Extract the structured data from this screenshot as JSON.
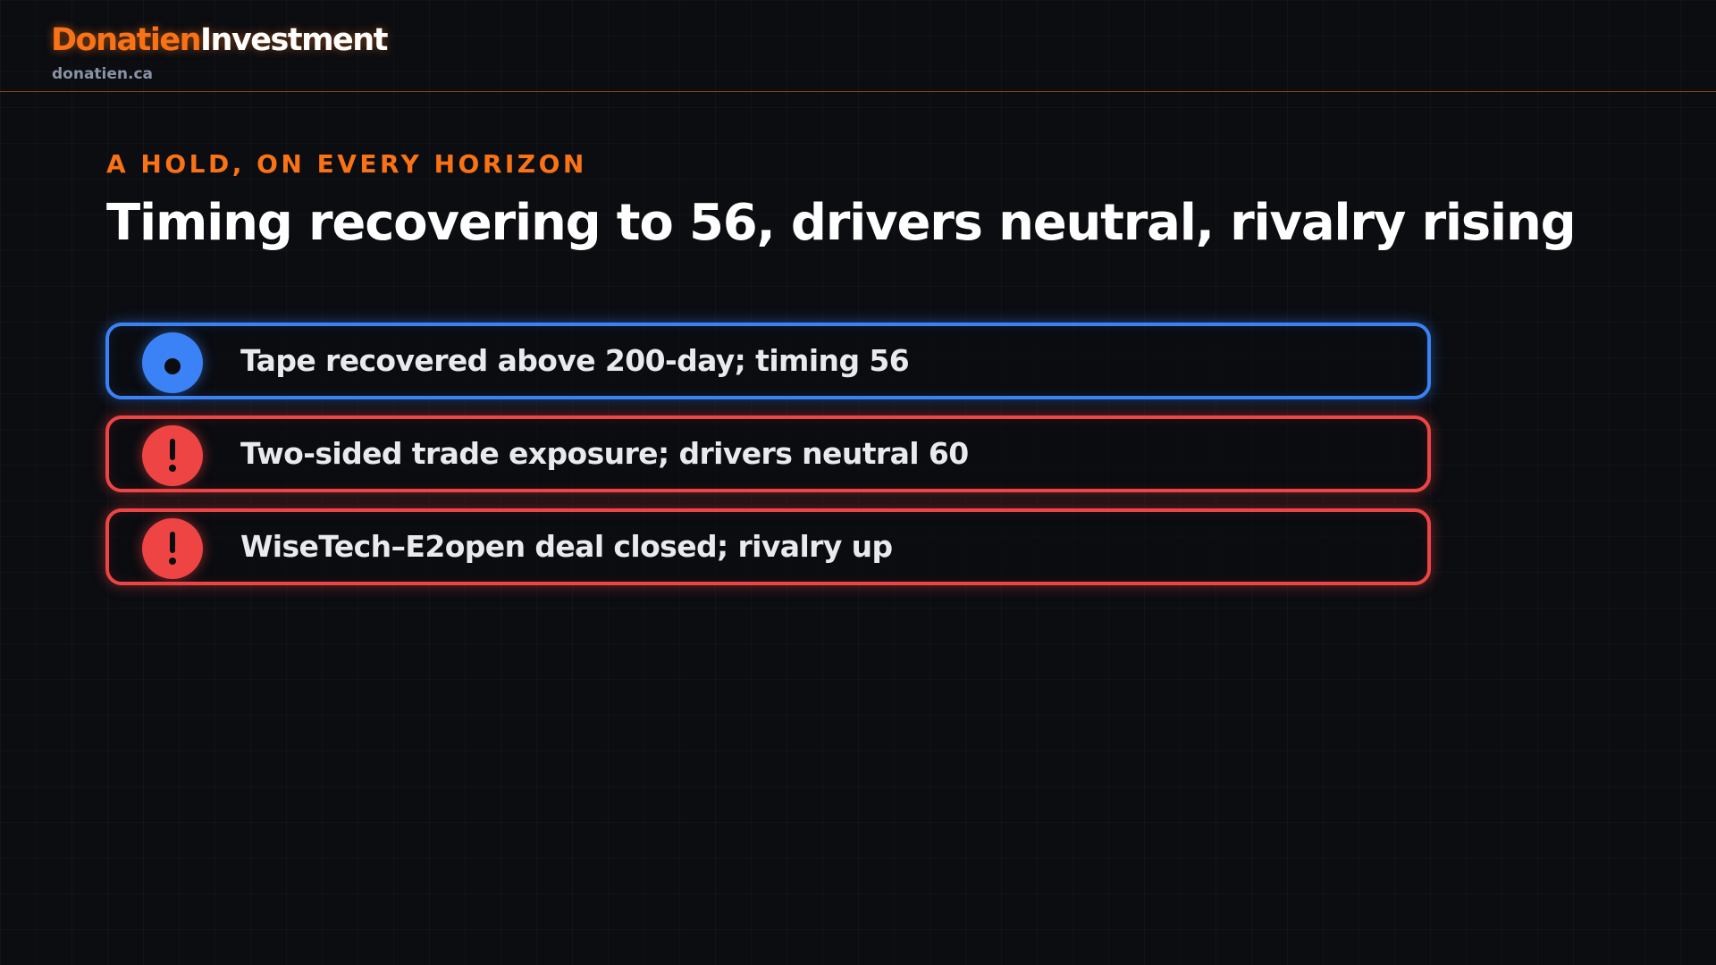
{
  "header": {
    "brand_primary": "Donatien",
    "brand_secondary": "Investment",
    "site": "donatien.ca",
    "accent_color": "#f97316"
  },
  "slide": {
    "eyebrow": "A HOLD, ON EVERY HORIZON",
    "title": "Timing recovering to 56, drivers neutral, rivalry rising"
  },
  "items": [
    {
      "label": "Tape recovered above 200-day; timing 56",
      "status": "positive",
      "icon": "dot-icon",
      "color": "#3b82f6"
    },
    {
      "label": "Two-sided trade exposure; drivers neutral 60",
      "status": "warning",
      "icon": "exclamation-icon",
      "color": "#ef4444"
    },
    {
      "label": "WiseTech–E2open deal closed; rivalry up",
      "status": "warning",
      "icon": "exclamation-icon",
      "color": "#ef4444"
    }
  ]
}
